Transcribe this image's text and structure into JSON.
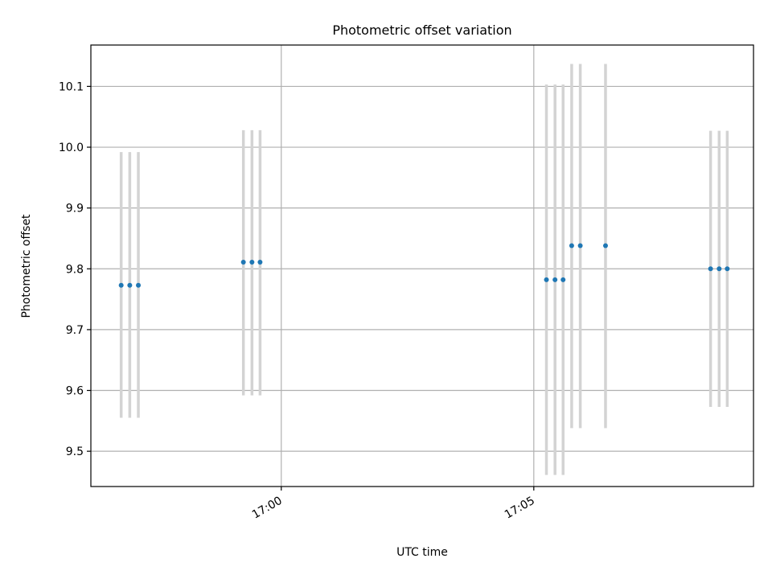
{
  "chart_data": {
    "type": "scatter",
    "title": "Photometric offset variation",
    "xlabel": "UTC time",
    "ylabel": "Photometric offset",
    "x_axis_type": "time",
    "x_tick_labels": [
      "17:00",
      "17:05"
    ],
    "x_tick_minutes": [
      1020,
      1025
    ],
    "xlim_minutes": [
      1016.23,
      1029.35
    ],
    "ylim": [
      9.442,
      10.168
    ],
    "y_ticks": [
      9.5,
      9.6,
      9.7,
      9.8,
      9.9,
      10.0,
      10.1
    ],
    "y_tick_labels": [
      "9.5",
      "9.6",
      "9.7",
      "9.8",
      "9.9",
      "10.0",
      "10.1"
    ],
    "grid": true,
    "series": [
      {
        "marker_color": "#1f77b4",
        "errorbar_color": "#d3d3d3",
        "points": [
          {
            "time": "16:56:50",
            "x_minutes": 1016.83,
            "y": 9.773,
            "y_low": 9.555,
            "y_high": 9.992
          },
          {
            "time": "16:57:00",
            "x_minutes": 1017.0,
            "y": 9.773,
            "y_low": 9.555,
            "y_high": 9.992
          },
          {
            "time": "16:57:10",
            "x_minutes": 1017.17,
            "y": 9.773,
            "y_low": 9.555,
            "y_high": 9.992
          },
          {
            "time": "16:59:15",
            "x_minutes": 1019.25,
            "y": 9.811,
            "y_low": 9.592,
            "y_high": 10.028
          },
          {
            "time": "16:59:25",
            "x_minutes": 1019.42,
            "y": 9.811,
            "y_low": 9.592,
            "y_high": 10.028
          },
          {
            "time": "16:59:35",
            "x_minutes": 1019.58,
            "y": 9.811,
            "y_low": 9.592,
            "y_high": 10.028
          },
          {
            "time": "17:05:15",
            "x_minutes": 1025.25,
            "y": 9.782,
            "y_low": 9.461,
            "y_high": 10.103
          },
          {
            "time": "17:05:25",
            "x_minutes": 1025.42,
            "y": 9.782,
            "y_low": 9.461,
            "y_high": 10.103
          },
          {
            "time": "17:05:35",
            "x_minutes": 1025.58,
            "y": 9.782,
            "y_low": 9.461,
            "y_high": 10.103
          },
          {
            "time": "17:05:45",
            "x_minutes": 1025.75,
            "y": 9.838,
            "y_low": 9.538,
            "y_high": 10.137
          },
          {
            "time": "17:05:55",
            "x_minutes": 1025.92,
            "y": 9.838,
            "y_low": 9.538,
            "y_high": 10.137
          },
          {
            "time": "17:06:25",
            "x_minutes": 1026.42,
            "y": 9.838,
            "y_low": 9.538,
            "y_high": 10.137
          },
          {
            "time": "17:08:30",
            "x_minutes": 1028.5,
            "y": 9.8,
            "y_low": 9.573,
            "y_high": 10.027
          },
          {
            "time": "17:08:40",
            "x_minutes": 1028.67,
            "y": 9.8,
            "y_low": 9.573,
            "y_high": 10.027
          },
          {
            "time": "17:08:50",
            "x_minutes": 1028.83,
            "y": 9.8,
            "y_low": 9.573,
            "y_high": 10.027
          }
        ]
      }
    ]
  }
}
